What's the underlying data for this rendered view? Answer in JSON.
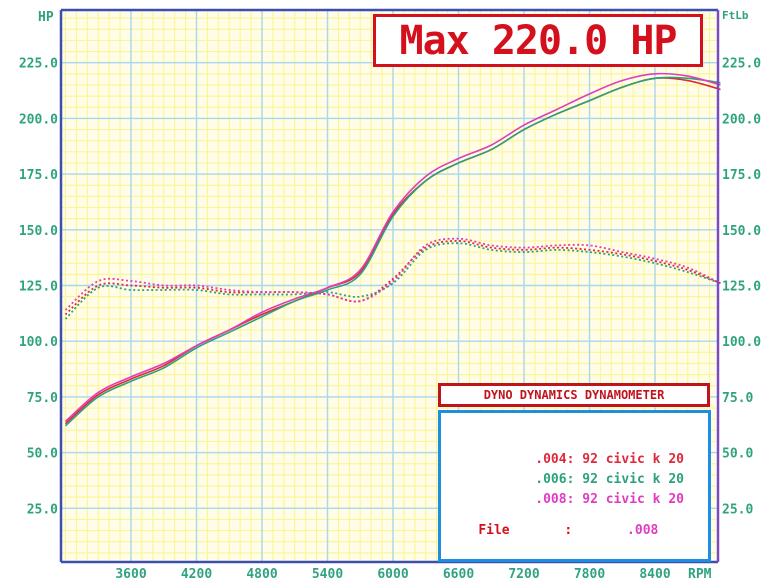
{
  "title": "Max 220.0 HP",
  "left_axis_unit": "HP",
  "right_axis_unit": "FtLb",
  "x_axis_unit": "RPM",
  "legend": {
    "header": "DYNO DYNAMICS DYNAMOMETER",
    "entries": [
      {
        "label": ".004: 92 civic k 20",
        "color": "#e0283a"
      },
      {
        "label": ".006: 92 civic k 20",
        "color": "#2aa37a"
      },
      {
        "label": ".008: 92 civic k 20",
        "color": "#e03cc0"
      }
    ],
    "file_label": "File",
    "file_sep": ":",
    "file_value": ".008",
    "file_label_color": "#d4101c",
    "file_value_color": "#e03cc0"
  },
  "colors": {
    "grid_major": "#a8d8f0",
    "grid_minor": "#fbf59a",
    "plot_bg": "#fffde8",
    "frame_left": "#3a4fb0",
    "frame_right": "#7a4cc0",
    "axis_text": "#2fa37f"
  },
  "chart_data": {
    "type": "line",
    "title": "Max 220.0 HP",
    "xlabel": "RPM",
    "ylabel": "HP",
    "y2label": "FtLb",
    "xlim": [
      3000,
      9000
    ],
    "ylim": [
      0,
      250
    ],
    "y2lim": [
      0,
      250
    ],
    "x_ticks": [
      3600,
      4200,
      4800,
      5400,
      6000,
      6600,
      7200,
      7800,
      8400
    ],
    "x_tick_labels": [
      "3600",
      "4200",
      "4800",
      "5400",
      "6000",
      "6600",
      "7200",
      "7800",
      "8400"
    ],
    "y_ticks": [
      25,
      50,
      75,
      100,
      125,
      150,
      175,
      200,
      225
    ],
    "y_tick_labels": [
      "25.0",
      "50.0",
      "75.0",
      "100.0",
      "125.0",
      "150.0",
      "175.0",
      "200.0",
      "225.0"
    ],
    "grid": true,
    "legend_position": "lower right",
    "x": [
      3000,
      3300,
      3600,
      3900,
      4200,
      4500,
      4800,
      5100,
      5400,
      5700,
      6000,
      6300,
      6600,
      6900,
      7200,
      7500,
      7800,
      8100,
      8400,
      8700,
      9000
    ],
    "series": [
      {
        "name": ".004: 92 civic k 20 (HP)",
        "axis": "left",
        "style": "solid",
        "color": "#e0283a",
        "values": [
          63,
          76,
          83,
          89,
          98,
          105,
          112,
          118,
          124,
          131,
          157,
          172,
          180,
          186,
          195,
          202,
          208,
          214,
          218,
          217,
          213
        ]
      },
      {
        "name": ".006: 92 civic k 20 (HP)",
        "axis": "left",
        "style": "solid",
        "color": "#2aa37a",
        "values": [
          62,
          75,
          82,
          88,
          97,
          104,
          111,
          118,
          123,
          130,
          156,
          172,
          180,
          186,
          195,
          202,
          208,
          214,
          218,
          218,
          216
        ]
      },
      {
        "name": ".008: 92 civic k 20 (HP)",
        "axis": "left",
        "style": "solid",
        "color": "#e03cc0",
        "values": [
          64,
          77,
          84,
          90,
          98,
          105,
          113,
          119,
          124,
          132,
          158,
          174,
          182,
          188,
          197,
          204,
          211,
          217,
          220,
          219,
          215
        ]
      },
      {
        "name": ".004: 92 civic k 20 (FtLb)",
        "axis": "right",
        "style": "dotted",
        "color": "#e0283a",
        "values": [
          112,
          125,
          125,
          124,
          124,
          122,
          122,
          122,
          121,
          118,
          128,
          142,
          145,
          142,
          141,
          142,
          141,
          139,
          136,
          132,
          126
        ]
      },
      {
        "name": ".006: 92 civic k 20 (FtLb)",
        "axis": "right",
        "style": "dotted",
        "color": "#2aa37a",
        "values": [
          110,
          124,
          123,
          123,
          123,
          121,
          121,
          121,
          122,
          120,
          126,
          141,
          144,
          141,
          140,
          141,
          140,
          138,
          135,
          131,
          126
        ]
      },
      {
        "name": ".008: 92 civic k 20 (FtLb)",
        "axis": "right",
        "style": "dotted",
        "color": "#e03cc0",
        "values": [
          114,
          127,
          127,
          125,
          125,
          123,
          122,
          122,
          121,
          118,
          127,
          143,
          146,
          143,
          142,
          143,
          143,
          140,
          137,
          133,
          126
        ]
      }
    ]
  }
}
